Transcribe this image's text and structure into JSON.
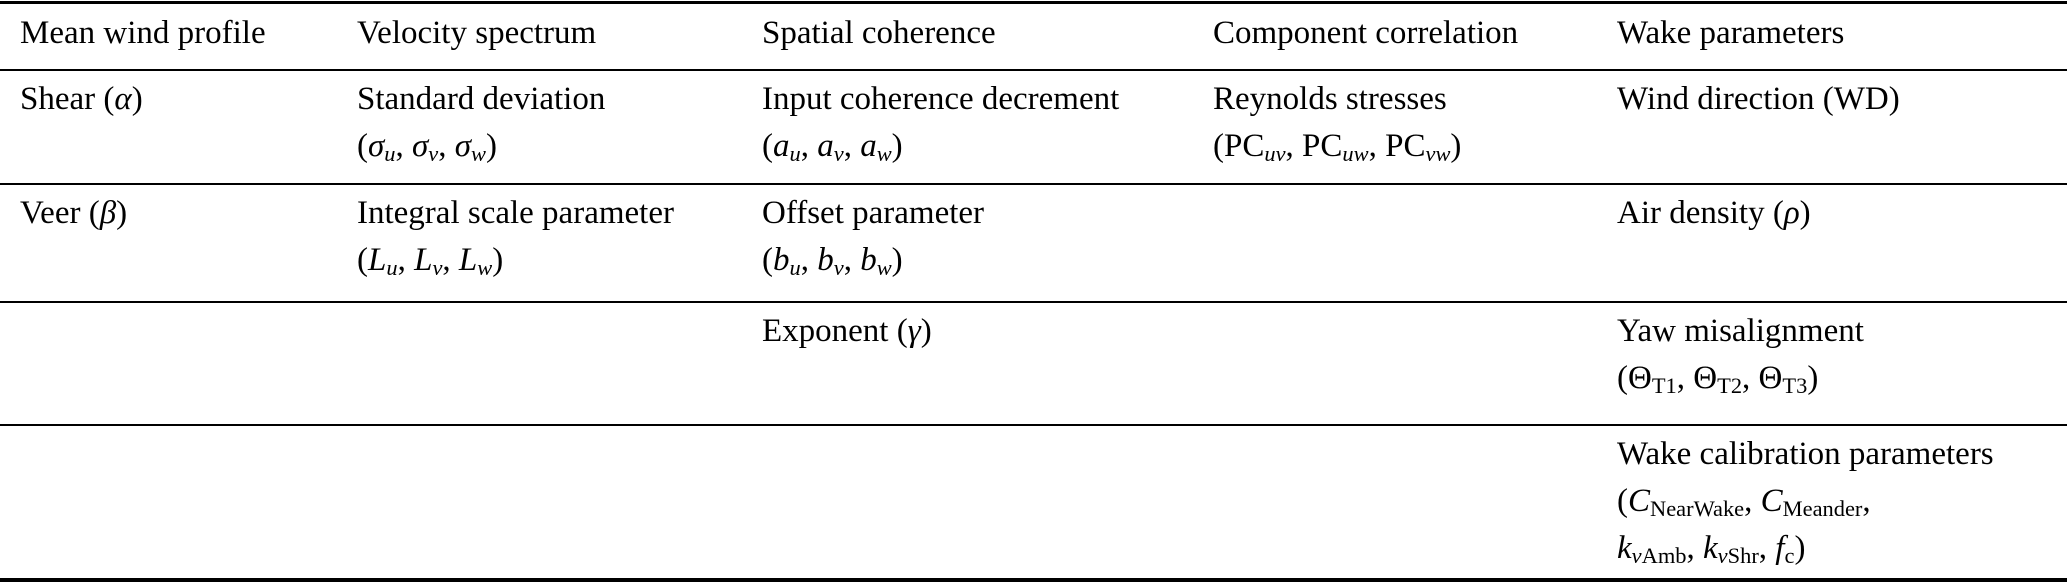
{
  "table": {
    "header": [
      "Mean wind profile",
      "Velocity spectrum",
      "Spatial coherence",
      "Component correlation",
      "Wake parameters"
    ],
    "rows": [
      {
        "cells": [
          {
            "lines": [
              "Shear (<i>α</i>)"
            ]
          },
          {
            "lines": [
              "Standard deviation",
              "(<i>σ<sub>u</sub></i>, <i>σ<sub>v</sub></i>, <i>σ<sub>w</sub></i>)"
            ]
          },
          {
            "lines": [
              "Input coherence decrement",
              "(<i>a<sub>u</sub></i>, <i>a<sub>v</sub></i>, <i>a<sub>w</sub></i>)"
            ]
          },
          {
            "lines": [
              "Reynolds stresses",
              "(PC<sub><i>uv</i></sub>, PC<sub><i>uw</i></sub>, PC<sub><i>vw</i></sub>)"
            ]
          },
          {
            "lines": [
              "Wind direction (WD)"
            ]
          }
        ]
      },
      {
        "cells": [
          {
            "lines": [
              "Veer (<i>β</i>)"
            ]
          },
          {
            "lines": [
              "Integral scale parameter",
              "(<i>L<sub>u</sub></i>, <i>L<sub>v</sub></i>, <i>L<sub>w</sub></i>)"
            ]
          },
          {
            "lines": [
              "Offset parameter",
              "(<i>b<sub>u</sub></i>, <i>b<sub>v</sub></i>, <i>b<sub>w</sub></i>)"
            ]
          },
          {
            "lines": []
          },
          {
            "lines": [
              "Air density (<i>ρ</i>)"
            ]
          }
        ]
      },
      {
        "cells": [
          {
            "lines": []
          },
          {
            "lines": []
          },
          {
            "lines": [
              "Exponent (<i>γ</i>)"
            ]
          },
          {
            "lines": []
          },
          {
            "lines": [
              "Yaw misalignment",
              "(Θ<sub>T1</sub>, Θ<sub>T2</sub>, Θ<sub>T3</sub>)"
            ]
          }
        ]
      },
      {
        "cells": [
          {
            "lines": []
          },
          {
            "lines": []
          },
          {
            "lines": []
          },
          {
            "lines": []
          },
          {
            "lines": [
              "Wake calibration parameters",
              "(<i>C</i><sub>NearWake</sub>, <i>C</i><sub>Meander</sub>,",
              "<i>k</i><sub><i>ν</i>Amb</sub>, <i>k</i><sub><i>ν</i>Shr</sub>, <i>f</i><sub>c</sub>)"
            ]
          }
        ]
      }
    ]
  }
}
